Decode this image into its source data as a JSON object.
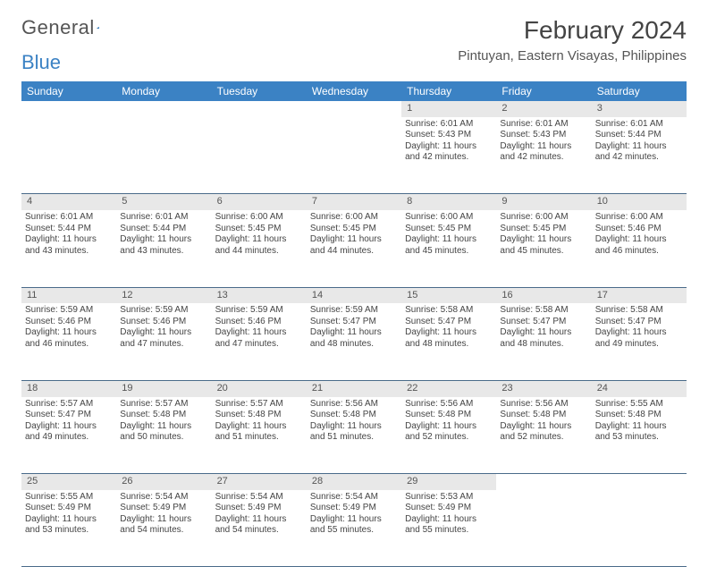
{
  "logo": {
    "text_general": "General",
    "text_blue": "Blue"
  },
  "header": {
    "month_title": "February 2024",
    "location": "Pintuyan, Eastern Visayas, Philippines"
  },
  "colors": {
    "brand_blue": "#3b82c4",
    "header_text": "#ffffff",
    "daynum_bg": "#e8e8e8",
    "row_divider": "#4a6b8a",
    "body_text": "#444444"
  },
  "day_headers": [
    "Sunday",
    "Monday",
    "Tuesday",
    "Wednesday",
    "Thursday",
    "Friday",
    "Saturday"
  ],
  "weeks": [
    [
      null,
      null,
      null,
      null,
      {
        "n": "1",
        "sr": "Sunrise: 6:01 AM",
        "ss": "Sunset: 5:43 PM",
        "dl1": "Daylight: 11 hours",
        "dl2": "and 42 minutes."
      },
      {
        "n": "2",
        "sr": "Sunrise: 6:01 AM",
        "ss": "Sunset: 5:43 PM",
        "dl1": "Daylight: 11 hours",
        "dl2": "and 42 minutes."
      },
      {
        "n": "3",
        "sr": "Sunrise: 6:01 AM",
        "ss": "Sunset: 5:44 PM",
        "dl1": "Daylight: 11 hours",
        "dl2": "and 42 minutes."
      }
    ],
    [
      {
        "n": "4",
        "sr": "Sunrise: 6:01 AM",
        "ss": "Sunset: 5:44 PM",
        "dl1": "Daylight: 11 hours",
        "dl2": "and 43 minutes."
      },
      {
        "n": "5",
        "sr": "Sunrise: 6:01 AM",
        "ss": "Sunset: 5:44 PM",
        "dl1": "Daylight: 11 hours",
        "dl2": "and 43 minutes."
      },
      {
        "n": "6",
        "sr": "Sunrise: 6:00 AM",
        "ss": "Sunset: 5:45 PM",
        "dl1": "Daylight: 11 hours",
        "dl2": "and 44 minutes."
      },
      {
        "n": "7",
        "sr": "Sunrise: 6:00 AM",
        "ss": "Sunset: 5:45 PM",
        "dl1": "Daylight: 11 hours",
        "dl2": "and 44 minutes."
      },
      {
        "n": "8",
        "sr": "Sunrise: 6:00 AM",
        "ss": "Sunset: 5:45 PM",
        "dl1": "Daylight: 11 hours",
        "dl2": "and 45 minutes."
      },
      {
        "n": "9",
        "sr": "Sunrise: 6:00 AM",
        "ss": "Sunset: 5:45 PM",
        "dl1": "Daylight: 11 hours",
        "dl2": "and 45 minutes."
      },
      {
        "n": "10",
        "sr": "Sunrise: 6:00 AM",
        "ss": "Sunset: 5:46 PM",
        "dl1": "Daylight: 11 hours",
        "dl2": "and 46 minutes."
      }
    ],
    [
      {
        "n": "11",
        "sr": "Sunrise: 5:59 AM",
        "ss": "Sunset: 5:46 PM",
        "dl1": "Daylight: 11 hours",
        "dl2": "and 46 minutes."
      },
      {
        "n": "12",
        "sr": "Sunrise: 5:59 AM",
        "ss": "Sunset: 5:46 PM",
        "dl1": "Daylight: 11 hours",
        "dl2": "and 47 minutes."
      },
      {
        "n": "13",
        "sr": "Sunrise: 5:59 AM",
        "ss": "Sunset: 5:46 PM",
        "dl1": "Daylight: 11 hours",
        "dl2": "and 47 minutes."
      },
      {
        "n": "14",
        "sr": "Sunrise: 5:59 AM",
        "ss": "Sunset: 5:47 PM",
        "dl1": "Daylight: 11 hours",
        "dl2": "and 48 minutes."
      },
      {
        "n": "15",
        "sr": "Sunrise: 5:58 AM",
        "ss": "Sunset: 5:47 PM",
        "dl1": "Daylight: 11 hours",
        "dl2": "and 48 minutes."
      },
      {
        "n": "16",
        "sr": "Sunrise: 5:58 AM",
        "ss": "Sunset: 5:47 PM",
        "dl1": "Daylight: 11 hours",
        "dl2": "and 48 minutes."
      },
      {
        "n": "17",
        "sr": "Sunrise: 5:58 AM",
        "ss": "Sunset: 5:47 PM",
        "dl1": "Daylight: 11 hours",
        "dl2": "and 49 minutes."
      }
    ],
    [
      {
        "n": "18",
        "sr": "Sunrise: 5:57 AM",
        "ss": "Sunset: 5:47 PM",
        "dl1": "Daylight: 11 hours",
        "dl2": "and 49 minutes."
      },
      {
        "n": "19",
        "sr": "Sunrise: 5:57 AM",
        "ss": "Sunset: 5:48 PM",
        "dl1": "Daylight: 11 hours",
        "dl2": "and 50 minutes."
      },
      {
        "n": "20",
        "sr": "Sunrise: 5:57 AM",
        "ss": "Sunset: 5:48 PM",
        "dl1": "Daylight: 11 hours",
        "dl2": "and 51 minutes."
      },
      {
        "n": "21",
        "sr": "Sunrise: 5:56 AM",
        "ss": "Sunset: 5:48 PM",
        "dl1": "Daylight: 11 hours",
        "dl2": "and 51 minutes."
      },
      {
        "n": "22",
        "sr": "Sunrise: 5:56 AM",
        "ss": "Sunset: 5:48 PM",
        "dl1": "Daylight: 11 hours",
        "dl2": "and 52 minutes."
      },
      {
        "n": "23",
        "sr": "Sunrise: 5:56 AM",
        "ss": "Sunset: 5:48 PM",
        "dl1": "Daylight: 11 hours",
        "dl2": "and 52 minutes."
      },
      {
        "n": "24",
        "sr": "Sunrise: 5:55 AM",
        "ss": "Sunset: 5:48 PM",
        "dl1": "Daylight: 11 hours",
        "dl2": "and 53 minutes."
      }
    ],
    [
      {
        "n": "25",
        "sr": "Sunrise: 5:55 AM",
        "ss": "Sunset: 5:49 PM",
        "dl1": "Daylight: 11 hours",
        "dl2": "and 53 minutes."
      },
      {
        "n": "26",
        "sr": "Sunrise: 5:54 AM",
        "ss": "Sunset: 5:49 PM",
        "dl1": "Daylight: 11 hours",
        "dl2": "and 54 minutes."
      },
      {
        "n": "27",
        "sr": "Sunrise: 5:54 AM",
        "ss": "Sunset: 5:49 PM",
        "dl1": "Daylight: 11 hours",
        "dl2": "and 54 minutes."
      },
      {
        "n": "28",
        "sr": "Sunrise: 5:54 AM",
        "ss": "Sunset: 5:49 PM",
        "dl1": "Daylight: 11 hours",
        "dl2": "and 55 minutes."
      },
      {
        "n": "29",
        "sr": "Sunrise: 5:53 AM",
        "ss": "Sunset: 5:49 PM",
        "dl1": "Daylight: 11 hours",
        "dl2": "and 55 minutes."
      },
      null,
      null
    ]
  ]
}
